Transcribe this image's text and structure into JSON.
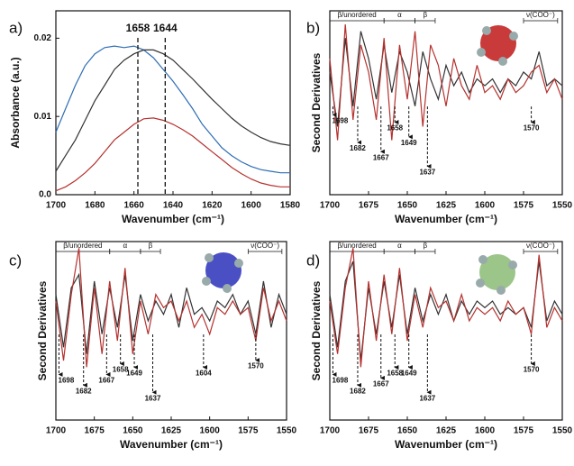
{
  "chart_data": [
    {
      "panel_label": "a)",
      "type": "line",
      "xlabel": "Wavenumber (cm⁻¹)",
      "ylabel": "Absorbance (a.u.)",
      "x": [
        1700,
        1695,
        1690,
        1685,
        1680,
        1675,
        1670,
        1665,
        1660,
        1655,
        1650,
        1645,
        1640,
        1635,
        1630,
        1625,
        1620,
        1615,
        1610,
        1605,
        1600,
        1595,
        1590,
        1585,
        1580
      ],
      "series": [
        {
          "color": "#2e6db4",
          "values": [
            0.008,
            0.011,
            0.014,
            0.0165,
            0.018,
            0.0188,
            0.019,
            0.0188,
            0.019,
            0.0185,
            0.0175,
            0.016,
            0.0145,
            0.0128,
            0.011,
            0.009,
            0.0075,
            0.006,
            0.005,
            0.0042,
            0.0036,
            0.0032,
            0.003,
            0.0028,
            0.0028
          ]
        },
        {
          "color": "#333333",
          "values": [
            0.003,
            0.005,
            0.007,
            0.0095,
            0.012,
            0.014,
            0.016,
            0.0172,
            0.018,
            0.0185,
            0.0185,
            0.018,
            0.0172,
            0.016,
            0.0148,
            0.0135,
            0.0122,
            0.011,
            0.0098,
            0.0088,
            0.008,
            0.0073,
            0.0068,
            0.0065,
            0.0063
          ]
        },
        {
          "color": "#b5322f",
          "values": [
            0.0005,
            0.001,
            0.0018,
            0.0028,
            0.004,
            0.0055,
            0.007,
            0.008,
            0.009,
            0.0097,
            0.0098,
            0.0095,
            0.009,
            0.0083,
            0.0075,
            0.0065,
            0.0055,
            0.0045,
            0.0035,
            0.0027,
            0.002,
            0.0015,
            0.0012,
            0.001,
            0.001
          ]
        }
      ],
      "xlim": [
        1700,
        1580
      ],
      "xticks": [
        1700,
        1680,
        1660,
        1640,
        1620,
        1600,
        1580
      ],
      "ylim": [
        0,
        0.0235
      ],
      "yticks": [
        {
          "value": 0,
          "label": "0.0"
        },
        0.01,
        0.02
      ],
      "vlines": [
        1658,
        1644
      ]
    },
    {
      "panel_label": "b)",
      "type": "line",
      "xlabel": "Wavenumber (cm⁻¹)",
      "ylabel": "Second Derivatives",
      "x": [
        1700,
        1695,
        1690,
        1685,
        1680,
        1675,
        1670,
        1665,
        1660,
        1655,
        1650,
        1645,
        1640,
        1635,
        1630,
        1625,
        1620,
        1615,
        1610,
        1605,
        1600,
        1595,
        1590,
        1585,
        1580,
        1575,
        1570,
        1565,
        1560,
        1555,
        1550
      ],
      "series": [
        {
          "color": "#333333",
          "values": [
            0.2,
            -0.6,
            0.7,
            -0.3,
            0.8,
            0.4,
            -0.2,
            0.6,
            -0.1,
            0.5,
            0.2,
            -0.3,
            0.5,
            0.1,
            -0.2,
            0.3,
            0.0,
            0.2,
            -0.1,
            0.1,
            0.0,
            0.1,
            -0.1,
            0.1,
            0.0,
            0.2,
            0.1,
            0.5,
            0.0,
            0.1,
            0.0
          ]
        },
        {
          "color": "#b5322f",
          "values": [
            0.4,
            -0.8,
            0.9,
            -0.5,
            0.6,
            0.2,
            -0.5,
            0.7,
            -0.8,
            0.6,
            -0.2,
            0.8,
            -0.6,
            0.6,
            0.3,
            -0.3,
            0.4,
            0.0,
            -0.2,
            0.3,
            -0.1,
            0.0,
            -0.2,
            0.1,
            -0.1,
            0.0,
            0.2,
            0.3,
            -0.1,
            0.1,
            -0.2
          ]
        }
      ],
      "xlim": [
        1700,
        1550
      ],
      "xticks": [
        1700,
        1675,
        1650,
        1625,
        1600,
        1575,
        1550
      ],
      "ylim": [
        -1.6,
        1.1
      ],
      "annotations": [
        {
          "label": "1698",
          "x": 1698
        },
        {
          "label": "1682",
          "x": 1682
        },
        {
          "label": "1667",
          "x": 1667
        },
        {
          "label": "1658",
          "x": 1658
        },
        {
          "label": "1649",
          "x": 1649
        },
        {
          "label": "1637",
          "x": 1637
        },
        {
          "label": "1570",
          "x": 1570
        }
      ],
      "regions": [
        {
          "label": "β/unordered",
          "from": 1700,
          "to": 1665
        },
        {
          "label": "α",
          "from": 1665,
          "to": 1645
        },
        {
          "label": "β",
          "from": 1645,
          "to": 1632
        },
        {
          "label": "ν(COO⁻)",
          "from": 1575,
          "to": 1553
        }
      ]
    },
    {
      "panel_label": "c)",
      "type": "line",
      "xlabel": "Wavenumber (cm⁻¹)",
      "ylabel": "Second Derivatives",
      "x": [
        1700,
        1695,
        1690,
        1685,
        1680,
        1675,
        1670,
        1665,
        1660,
        1655,
        1650,
        1645,
        1640,
        1635,
        1630,
        1625,
        1620,
        1615,
        1610,
        1605,
        1600,
        1595,
        1590,
        1585,
        1580,
        1575,
        1570,
        1565,
        1560,
        1555,
        1550
      ],
      "series": [
        {
          "color": "#333333",
          "values": [
            0.3,
            -0.5,
            0.4,
            0.6,
            -0.6,
            0.5,
            -0.3,
            0.4,
            -0.2,
            0.6,
            -0.4,
            0.3,
            -0.1,
            0.2,
            0.0,
            0.3,
            -0.2,
            0.4,
            0.0,
            0.1,
            -0.1,
            0.2,
            0.1,
            0.3,
            0.0,
            0.2,
            -0.3,
            0.5,
            -0.2,
            0.3,
            0.0
          ]
        },
        {
          "color": "#b5322f",
          "values": [
            0.2,
            -0.7,
            0.3,
            1.0,
            -0.8,
            0.4,
            -0.6,
            0.5,
            -0.4,
            0.7,
            -0.6,
            0.2,
            -0.3,
            0.3,
            0.1,
            0.2,
            -0.1,
            0.2,
            -0.2,
            0.0,
            -0.3,
            0.1,
            0.0,
            0.2,
            0.0,
            0.1,
            -0.4,
            0.4,
            -0.1,
            0.2,
            -0.1
          ]
        }
      ],
      "xlim": [
        1700,
        1550
      ],
      "xticks": [
        1700,
        1675,
        1650,
        1625,
        1600,
        1575,
        1550
      ],
      "ylim": [
        -1.6,
        1.1
      ],
      "annotations": [
        {
          "label": "1698",
          "x": 1698
        },
        {
          "label": "1682",
          "x": 1682
        },
        {
          "label": "1667",
          "x": 1667
        },
        {
          "label": "1658",
          "x": 1658
        },
        {
          "label": "1649",
          "x": 1649
        },
        {
          "label": "1637",
          "x": 1637
        },
        {
          "label": "1604",
          "x": 1604
        },
        {
          "label": "1570",
          "x": 1570
        }
      ],
      "regions": [
        {
          "label": "β/unordered",
          "from": 1700,
          "to": 1665
        },
        {
          "label": "α",
          "from": 1665,
          "to": 1645
        },
        {
          "label": "β",
          "from": 1645,
          "to": 1632
        },
        {
          "label": "ν(COO⁻)",
          "from": 1575,
          "to": 1553
        }
      ]
    },
    {
      "panel_label": "d)",
      "type": "line",
      "xlabel": "Wavenumber (cm⁻¹)",
      "ylabel": "Second Derivatives",
      "x": [
        1700,
        1695,
        1690,
        1685,
        1680,
        1675,
        1670,
        1665,
        1660,
        1655,
        1650,
        1645,
        1640,
        1635,
        1630,
        1625,
        1620,
        1615,
        1610,
        1605,
        1600,
        1595,
        1590,
        1585,
        1580,
        1575,
        1570,
        1565,
        1560,
        1555,
        1550
      ],
      "series": [
        {
          "color": "#333333",
          "values": [
            0.3,
            -0.5,
            0.5,
            0.8,
            -0.7,
            0.4,
            -0.3,
            0.5,
            -0.2,
            0.6,
            -0.3,
            0.4,
            -0.1,
            0.3,
            0.0,
            0.3,
            -0.1,
            0.2,
            0.0,
            0.2,
            0.1,
            0.2,
            0.0,
            0.1,
            0.0,
            0.1,
            -0.2,
            0.8,
            -0.1,
            0.2,
            0.0
          ]
        },
        {
          "color": "#b5322f",
          "values": [
            0.2,
            -0.6,
            0.4,
            1.0,
            -0.8,
            0.5,
            -0.4,
            0.6,
            -0.3,
            0.7,
            -0.4,
            0.3,
            -0.2,
            0.4,
            0.1,
            0.2,
            -0.1,
            0.3,
            -0.1,
            0.1,
            0.0,
            0.1,
            -0.1,
            0.2,
            0.0,
            0.1,
            -0.3,
            0.9,
            -0.2,
            0.1,
            -0.1
          ]
        }
      ],
      "xlim": [
        1700,
        1550
      ],
      "xticks": [
        1700,
        1675,
        1650,
        1625,
        1600,
        1575,
        1550
      ],
      "ylim": [
        -1.6,
        1.1
      ],
      "annotations": [
        {
          "label": "1698",
          "x": 1698
        },
        {
          "label": "1682",
          "x": 1682
        },
        {
          "label": "1667",
          "x": 1667
        },
        {
          "label": "1658",
          "x": 1658
        },
        {
          "label": "1649",
          "x": 1649
        },
        {
          "label": "1637",
          "x": 1637
        },
        {
          "label": "1570",
          "x": 1570
        }
      ],
      "regions": [
        {
          "label": "β/unordered",
          "from": 1700,
          "to": 1665
        },
        {
          "label": "α",
          "from": 1665,
          "to": 1645
        },
        {
          "label": "β",
          "from": 1645,
          "to": 1632
        },
        {
          "label": "ν(COO⁻)",
          "from": 1575,
          "to": 1553
        }
      ]
    }
  ]
}
